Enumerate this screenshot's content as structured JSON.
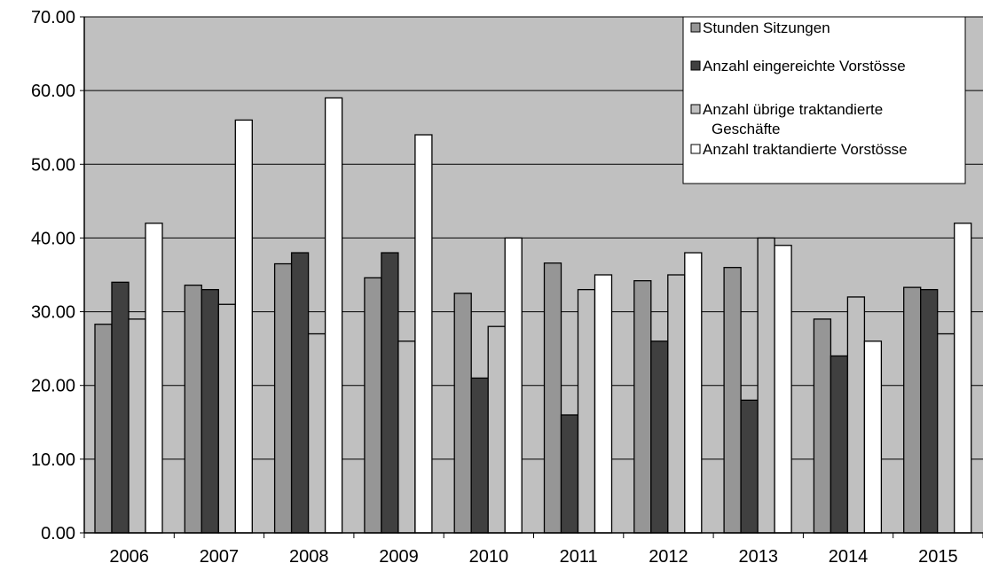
{
  "chart_data": {
    "type": "bar",
    "title": "",
    "xlabel": "",
    "ylabel": "",
    "ylim": [
      0,
      70
    ],
    "yticks": [
      "0.00",
      "10.00",
      "20.00",
      "30.00",
      "40.00",
      "50.00",
      "60.00",
      "70.00"
    ],
    "categories": [
      "2006",
      "2007",
      "2008",
      "2009",
      "2010",
      "2011",
      "2012",
      "2013",
      "2014",
      "2015"
    ],
    "grid": true,
    "legend_position": "top-right",
    "series": [
      {
        "name": "Stunden Sitzungen",
        "color": "#969696",
        "values": [
          28.3,
          33.6,
          36.5,
          34.6,
          32.5,
          36.6,
          34.2,
          36.0,
          29.0,
          33.3
        ]
      },
      {
        "name": "Anzahl eingereichte Vorstösse",
        "color": "#404040",
        "values": [
          34,
          33,
          38,
          38,
          21,
          16,
          26,
          18,
          24,
          33
        ]
      },
      {
        "name": "Anzahl übrige traktandierte Geschäfte",
        "color": "#c0c0c0",
        "values": [
          29,
          31,
          27,
          26,
          28,
          33,
          35,
          40,
          32,
          27
        ]
      },
      {
        "name": "Anzahl traktandierte Vorstösse",
        "color": "#ffffff",
        "values": [
          42,
          56,
          59,
          54,
          40,
          35,
          38,
          39,
          26,
          42
        ]
      }
    ],
    "plot_background": "#c0c0c0"
  }
}
